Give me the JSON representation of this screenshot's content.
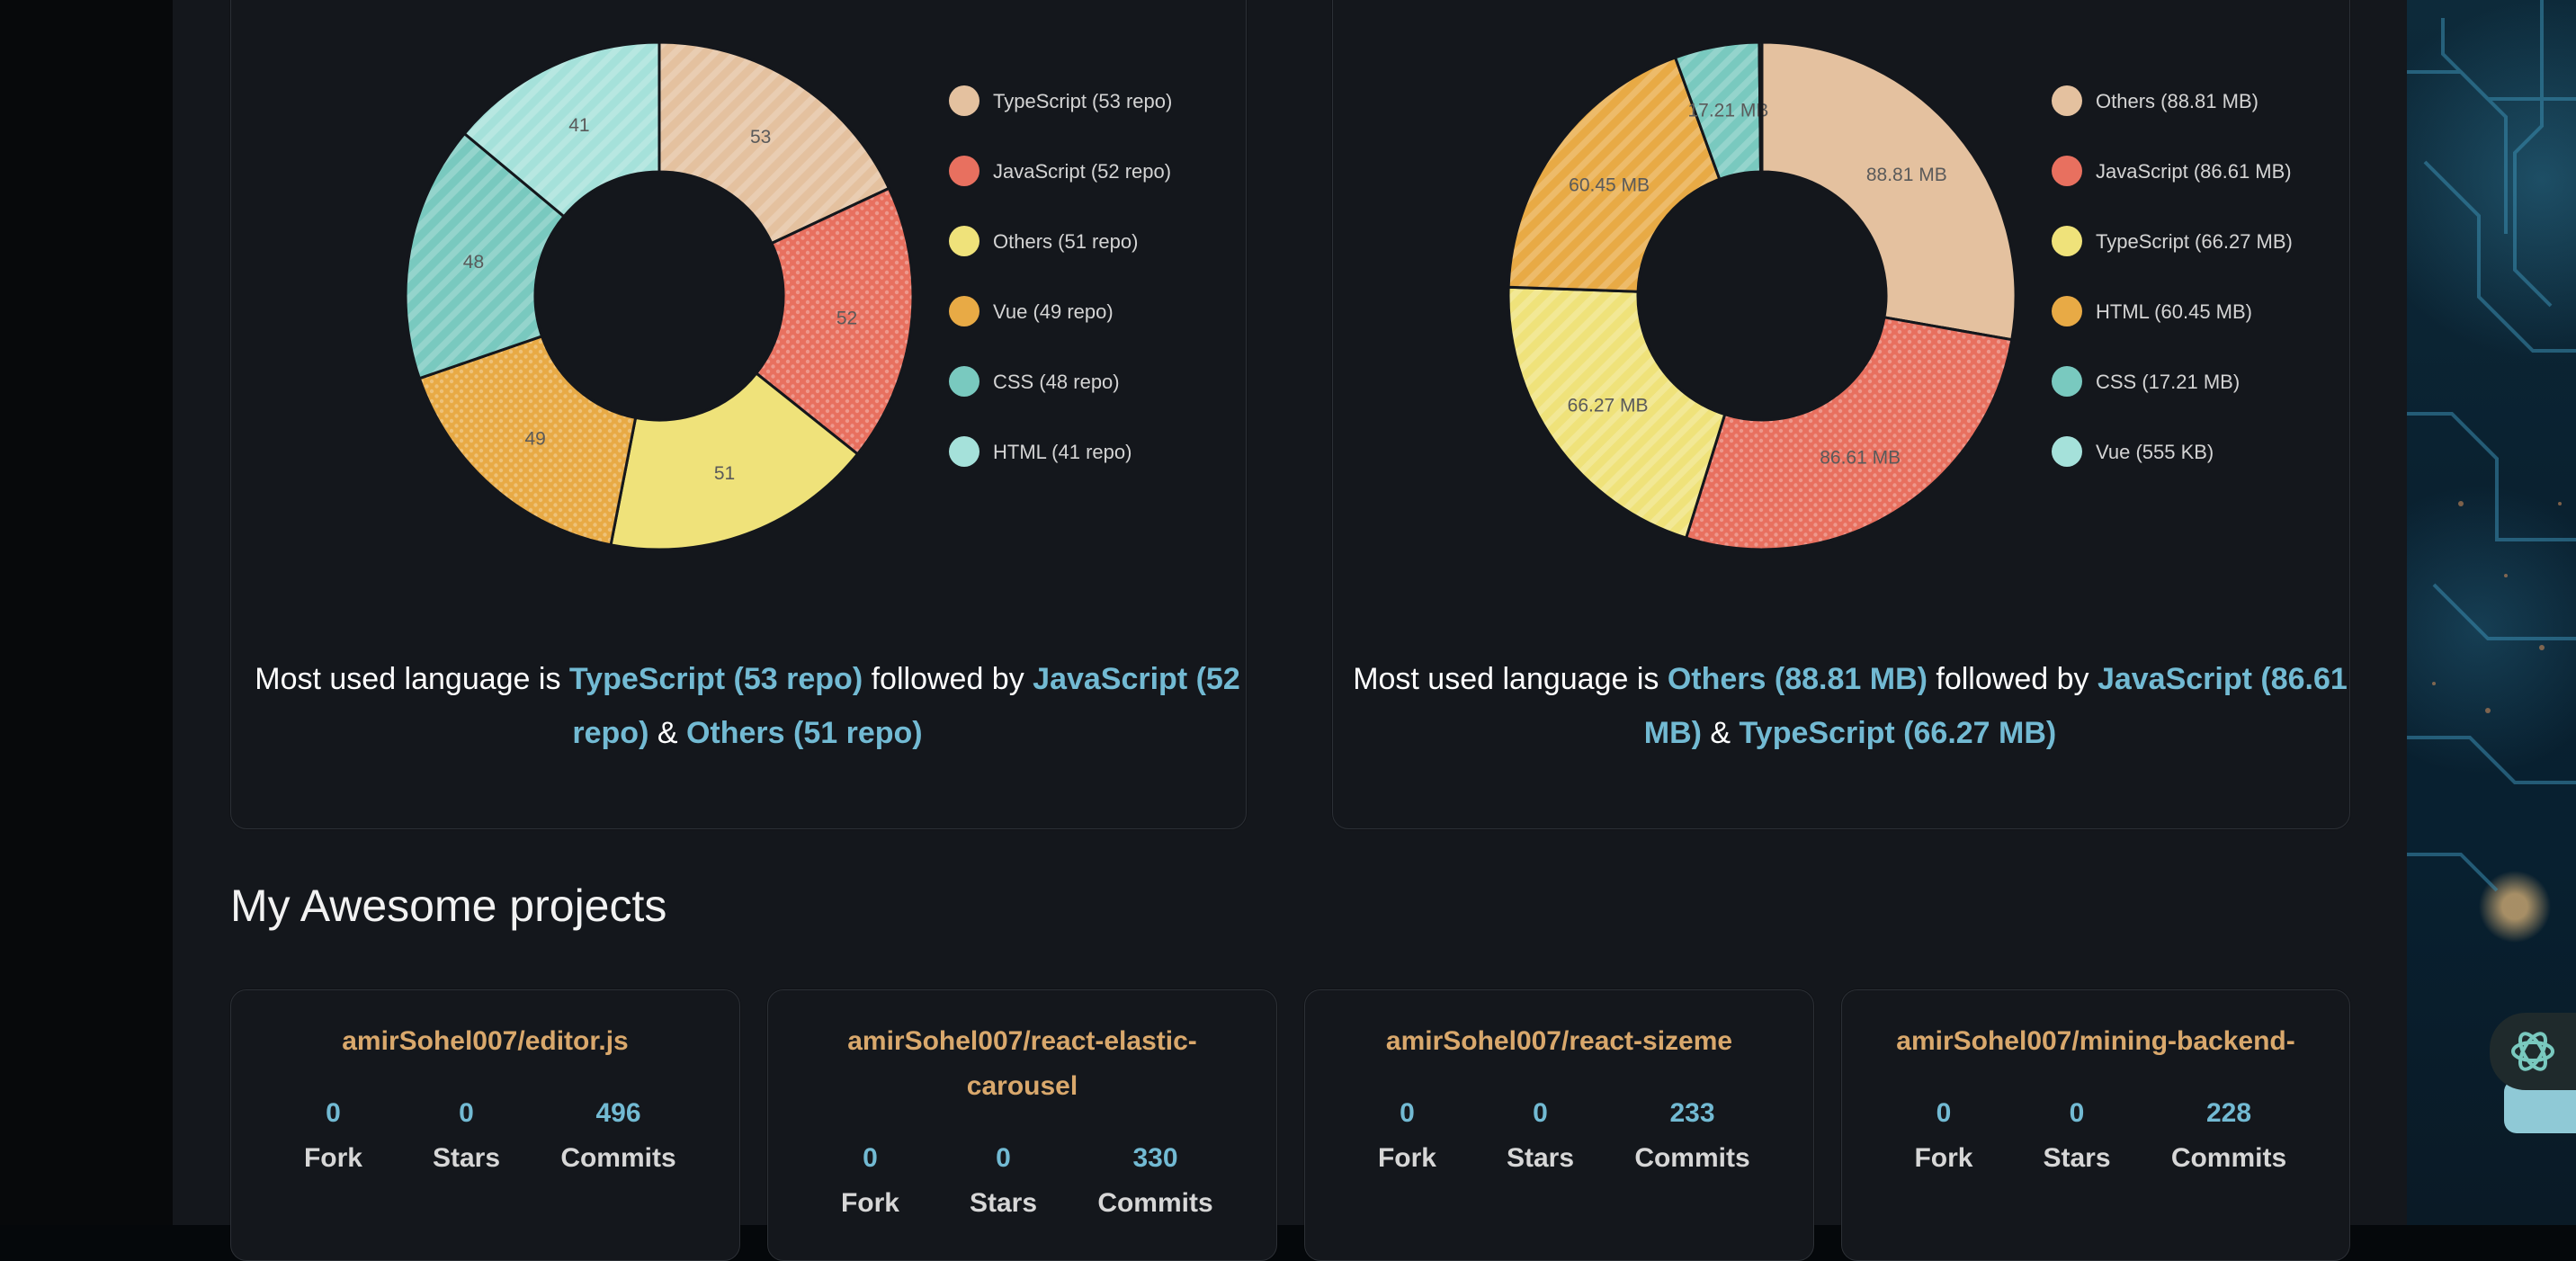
{
  "colors": {
    "accent": "#72bad3",
    "project_title": "#d9a86c",
    "typescript": "#e4c19f",
    "javascript": "#e8705f",
    "others": "#efe27a",
    "vue": "#e8aa45",
    "css": "#79c9bf",
    "html": "#a5e1da"
  },
  "left_chart": {
    "summary": {
      "prefix": "Most used language is ",
      "first": "TypeScript (53 repo)",
      "middle": " followed by ",
      "second": "JavaScript (52 repo)",
      "amp": " & ",
      "third": "Others (51 repo)"
    }
  },
  "right_chart": {
    "summary": {
      "prefix": "Most used language is ",
      "first": "Others (88.81 MB)",
      "middle": " followed by ",
      "second": "JavaScript (86.61 MB)",
      "amp": " & ",
      "third": "TypeScript (66.27 MB)"
    }
  },
  "chart_data": [
    {
      "type": "pie",
      "title": "",
      "unit": "repo",
      "categories": [
        "TypeScript",
        "JavaScript",
        "Others",
        "Vue",
        "CSS",
        "HTML"
      ],
      "values": [
        53,
        52,
        51,
        49,
        48,
        41
      ],
      "slice_labels": [
        "53",
        "52",
        "51",
        "49",
        "48",
        "41"
      ],
      "legend": [
        "TypeScript (53 repo)",
        "JavaScript (52 repo)",
        "Others (51 repo)",
        "Vue (49 repo)",
        "CSS (48 repo)",
        "HTML (41 repo)"
      ],
      "colors": [
        "#e4c19f",
        "#e8705f",
        "#efe27a",
        "#e8aa45",
        "#79c9bf",
        "#a5e1da"
      ],
      "patterns": [
        "stripes",
        "dots",
        "none",
        "dots",
        "stripes",
        "stripes"
      ],
      "legend_position": "right"
    },
    {
      "type": "pie",
      "title": "",
      "unit": "MB",
      "categories": [
        "Others",
        "JavaScript",
        "TypeScript",
        "HTML",
        "CSS",
        "Vue"
      ],
      "values": [
        88.81,
        86.61,
        66.27,
        60.45,
        17.21,
        0.555
      ],
      "slice_labels": [
        "88.81 MB",
        "86.61 MB",
        "66.27 MB",
        "60.45 MB",
        "17.21 MB",
        ""
      ],
      "legend": [
        "Others (88.81 MB)",
        "JavaScript (86.61 MB)",
        "TypeScript (66.27 MB)",
        "HTML (60.45 MB)",
        "CSS (17.21 MB)",
        "Vue (555 KB)"
      ],
      "colors": [
        "#e4c19f",
        "#e8705f",
        "#efe27a",
        "#e8aa45",
        "#79c9bf",
        "#a5e1da"
      ],
      "patterns": [
        "none",
        "dots",
        "stripes",
        "stripes",
        "stripes",
        "none"
      ],
      "legend_position": "right"
    }
  ],
  "section": {
    "title": "My Awesome projects"
  },
  "projects": [
    {
      "name": "amirSohel007/editor.js",
      "fork": "0",
      "stars": "0",
      "commits": "496",
      "fork_label": "Fork",
      "stars_label": "Stars",
      "commits_label": "Commits"
    },
    {
      "name": "amirSohel007/react-elastic-carousel",
      "fork": "0",
      "stars": "0",
      "commits": "330",
      "fork_label": "Fork",
      "stars_label": "Stars",
      "commits_label": "Commits"
    },
    {
      "name": "amirSohel007/react-sizeme",
      "fork": "0",
      "stars": "0",
      "commits": "233",
      "fork_label": "Fork",
      "stars_label": "Stars",
      "commits_label": "Commits"
    },
    {
      "name": "amirSohel007/mining-backend-",
      "fork": "0",
      "stars": "0",
      "commits": "228",
      "fork_label": "Fork",
      "stars_label": "Stars",
      "commits_label": "Commits"
    }
  ]
}
